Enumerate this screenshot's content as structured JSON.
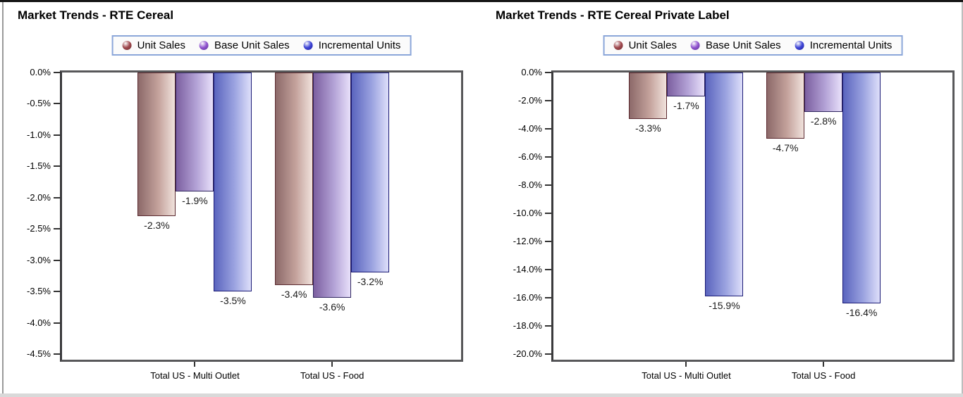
{
  "chart_data": [
    {
      "type": "bar",
      "title": "Market Trends - RTE Cereal",
      "categories": [
        "Total US - Multi Outlet",
        "Total US - Food"
      ],
      "series": [
        {
          "name": "Unit Sales",
          "values": [
            -2.3,
            -3.4
          ],
          "labels": [
            "-2.3%",
            "-3.4%"
          ]
        },
        {
          "name": "Base Unit Sales",
          "values": [
            -1.9,
            -3.6
          ],
          "labels": [
            "-1.9%",
            "-3.6%"
          ]
        },
        {
          "name": "Incremental Units",
          "values": [
            -3.5,
            -3.2
          ],
          "labels": [
            "-3.5%",
            "-3.2%"
          ]
        }
      ],
      "ylim": [
        -4.5,
        0
      ],
      "y_ticks": [
        "0.0%",
        "-0.5%",
        "-1.0%",
        "-1.5%",
        "-2.0%",
        "-2.5%",
        "-3.0%",
        "-3.5%",
        "-4.0%",
        "-4.5%"
      ],
      "xlabel": "",
      "ylabel": "",
      "grid": false,
      "legend_position": "top-center"
    },
    {
      "type": "bar",
      "title": "Market Trends - RTE Cereal Private Label",
      "categories": [
        "Total US - Multi Outlet",
        "Total US - Food"
      ],
      "series": [
        {
          "name": "Unit Sales",
          "values": [
            -3.3,
            -4.7
          ],
          "labels": [
            "-3.3%",
            "-4.7%"
          ]
        },
        {
          "name": "Base Unit Sales",
          "values": [
            -1.7,
            -2.8
          ],
          "labels": [
            "-1.7%",
            "-2.8%"
          ]
        },
        {
          "name": "Incremental Units",
          "values": [
            -15.9,
            -16.4
          ],
          "labels": [
            "-15.9%",
            "-16.4%"
          ]
        }
      ],
      "ylim": [
        -20.0,
        0
      ],
      "y_ticks": [
        "0.0%",
        "-2.0%",
        "-4.0%",
        "-6.0%",
        "-8.0%",
        "-10.0%",
        "-12.0%",
        "-14.0%",
        "-16.0%",
        "-18.0%",
        "-20.0%"
      ],
      "xlabel": "",
      "ylabel": "",
      "grid": false,
      "legend_position": "top-center"
    }
  ],
  "colors": {
    "series": [
      {
        "name": "Unit Sales",
        "marker": "#a04a50",
        "marker_dark": "#6e2a2a",
        "bar_from": "#8c6969",
        "bar_mid": "#c4a29c",
        "bar_to": "#f0e2dc",
        "border": "#5a282e"
      },
      {
        "name": "Base Unit Sales",
        "marker": "#9255d0",
        "marker_dark": "#5a2d96",
        "bar_from": "#7c5fa0",
        "bar_mid": "#b3a2d6",
        "bar_to": "#e8e0fa",
        "border": "#30265f"
      },
      {
        "name": "Incremental Units",
        "marker": "#3f46d6",
        "marker_dark": "#1f1f9e",
        "bar_from": "#5a64be",
        "bar_mid": "#9ba3e0",
        "bar_to": "#dedffa",
        "border": "#1a1a75"
      }
    ],
    "legend_border": "#8ba6d9",
    "plot_border": "#58585a",
    "axis": "#333333",
    "bottom_strip": "#d9d9d9"
  }
}
